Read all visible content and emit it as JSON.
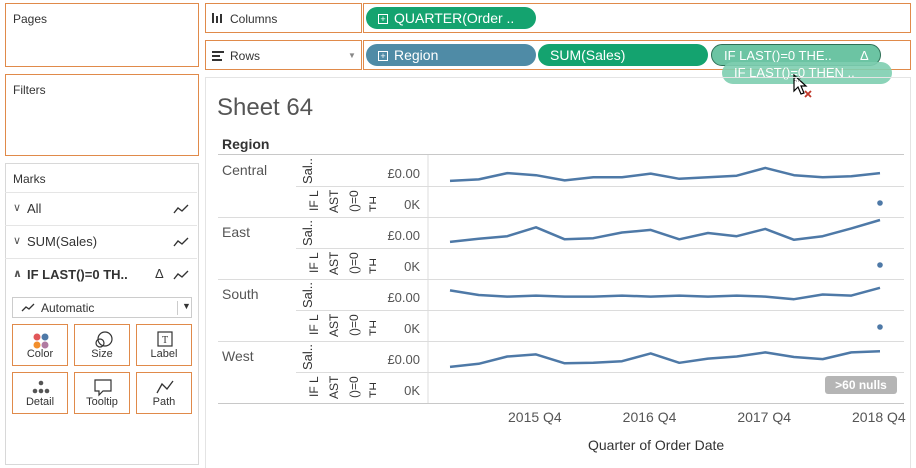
{
  "panels": {
    "pages": "Pages",
    "filters": "Filters",
    "marks": "Marks"
  },
  "shelves": {
    "columns_label": "Columns",
    "rows_label": "Rows",
    "columns_pills": [
      "QUARTER(Order .."
    ],
    "rows_pills": [
      "Region",
      "SUM(Sales)",
      "IF LAST()=0 THE.."
    ],
    "drag_ghost": "IF LAST()=0 THEN .."
  },
  "marks": {
    "rows": [
      {
        "label": "All"
      },
      {
        "label": "SUM(Sales)"
      },
      {
        "label": "IF LAST()=0 TH.."
      }
    ],
    "mark_type": "Automatic",
    "cards": [
      "Color",
      "Size",
      "Label",
      "Detail",
      "Tooltip",
      "Path"
    ]
  },
  "sheet": {
    "title": "Sheet 64",
    "region_header": "Region",
    "x_axis_title": "Quarter of Order Date",
    "x_ticks": [
      "2015 Q4",
      "2016 Q4",
      "2017 Q4",
      "2018 Q4"
    ],
    "nulls_badge": ">60 nulls",
    "row_axis_labels": {
      "sales": "Sal..",
      "calc": "IF L AST ()=0 TH.."
    },
    "axis_values": {
      "sales": "£0.00",
      "calc": "0K"
    }
  },
  "chart_data": {
    "type": "line",
    "x_title": "Quarter of Order Date",
    "x": [
      "2015 Q1",
      "2015 Q2",
      "2015 Q3",
      "2015 Q4",
      "2016 Q1",
      "2016 Q2",
      "2016 Q3",
      "2016 Q4",
      "2017 Q1",
      "2017 Q2",
      "2017 Q3",
      "2017 Q4",
      "2018 Q1",
      "2018 Q2",
      "2018 Q3",
      "2018 Q4"
    ],
    "series": [
      {
        "name": "Central",
        "values": [
          0.2,
          0.35,
          0.95,
          0.75,
          0.25,
          0.55,
          0.55,
          0.9,
          0.4,
          0.55,
          0.7,
          1.45,
          0.75,
          0.55,
          0.65,
          0.95
        ]
      },
      {
        "name": "East",
        "values": [
          0.3,
          0.6,
          0.85,
          1.7,
          0.55,
          0.65,
          1.2,
          1.45,
          0.55,
          1.15,
          0.85,
          1.55,
          0.5,
          0.85,
          1.6,
          2.4
        ]
      },
      {
        "name": "South",
        "values": [
          1.6,
          1.15,
          1.0,
          1.1,
          1.0,
          1.0,
          1.1,
          1.0,
          1.1,
          1.0,
          1.1,
          1.0,
          0.75,
          1.2,
          1.1,
          1.85
        ]
      },
      {
        "name": "West",
        "values": [
          0.2,
          0.5,
          1.2,
          1.4,
          0.55,
          0.6,
          0.75,
          1.5,
          0.6,
          1.0,
          1.2,
          1.6,
          1.15,
          0.95,
          1.6,
          1.7
        ]
      }
    ],
    "calc_points": [
      {
        "region": "Central",
        "x": "2018 Q4"
      },
      {
        "region": "East",
        "x": "2018 Q4"
      },
      {
        "region": "South",
        "x": "2018 Q4"
      },
      {
        "region": "West",
        "x": "2018 Q4"
      }
    ],
    "line_color": "#4e79a7"
  }
}
